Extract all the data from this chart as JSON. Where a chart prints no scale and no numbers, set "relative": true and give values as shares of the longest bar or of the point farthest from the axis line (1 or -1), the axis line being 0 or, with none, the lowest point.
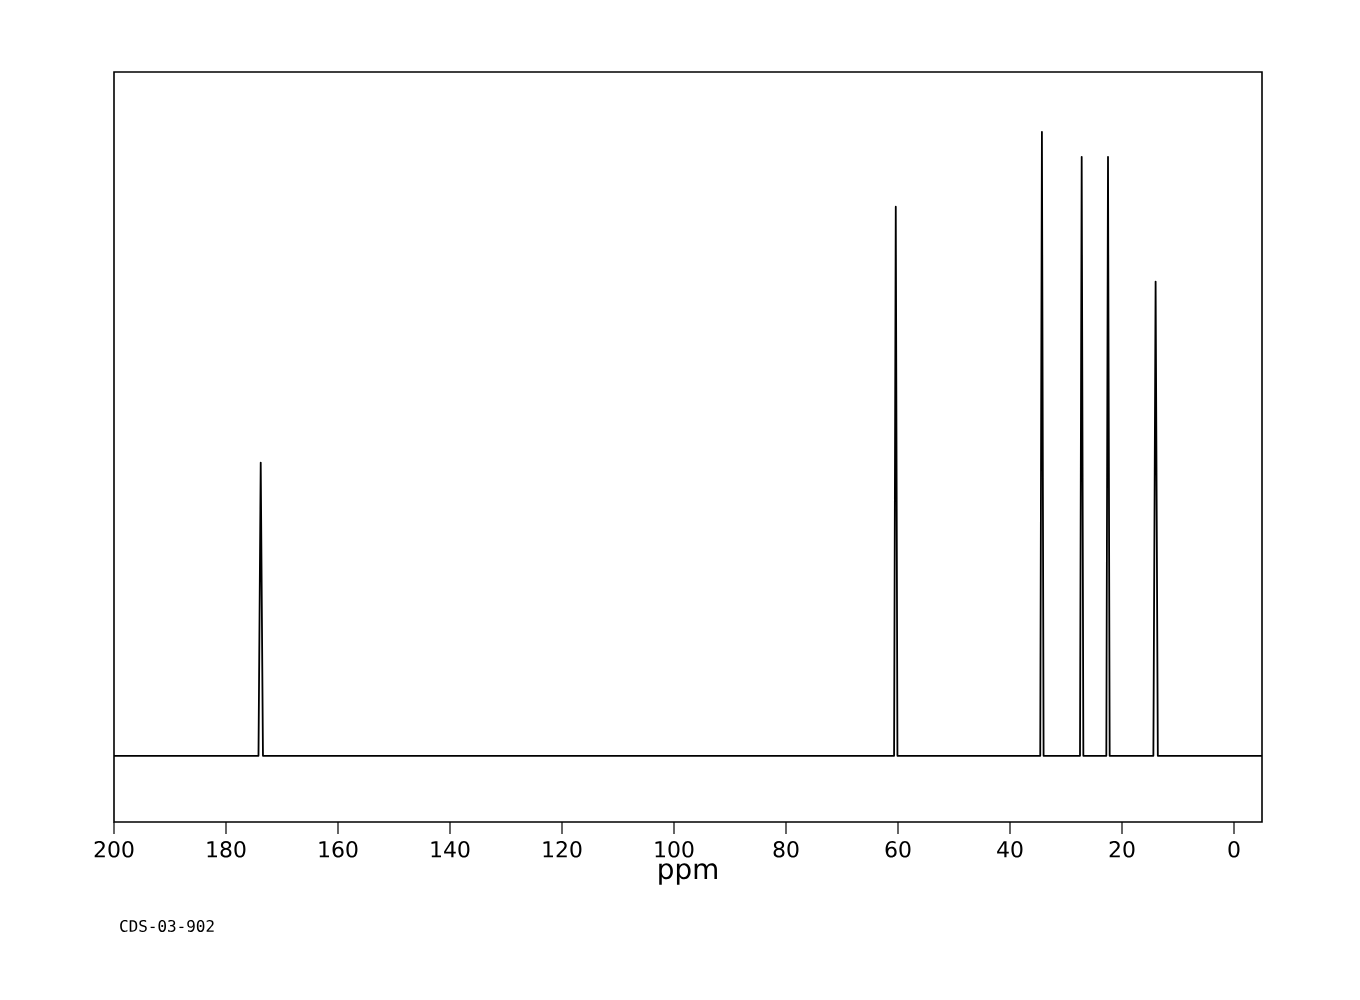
{
  "chart_data": {
    "type": "line",
    "xlabel": "ppm",
    "relative": true,
    "annotations": [
      "CDS-03-902"
    ],
    "xlim": [
      200,
      -5
    ],
    "xticks": [
      200,
      180,
      160,
      140,
      120,
      100,
      80,
      60,
      40,
      20,
      0
    ],
    "series": [
      {
        "color": "#000000",
        "x": [
          200,
          174.2,
          173.8,
          173.4,
          60.7,
          60.4,
          60.1,
          34.6,
          34.3,
          34.0,
          27.5,
          27.2,
          26.9,
          22.8,
          22.5,
          22.2,
          14.4,
          14.0,
          13.6,
          -5
        ],
        "values": [
          0,
          0,
          0.47,
          0,
          0,
          0.88,
          0,
          0,
          1,
          0,
          0,
          0.96,
          0,
          0,
          0.96,
          0,
          0,
          0.76,
          0,
          0
        ]
      }
    ],
    "grid": false,
    "marker": "none",
    "line_style": "solid"
  }
}
